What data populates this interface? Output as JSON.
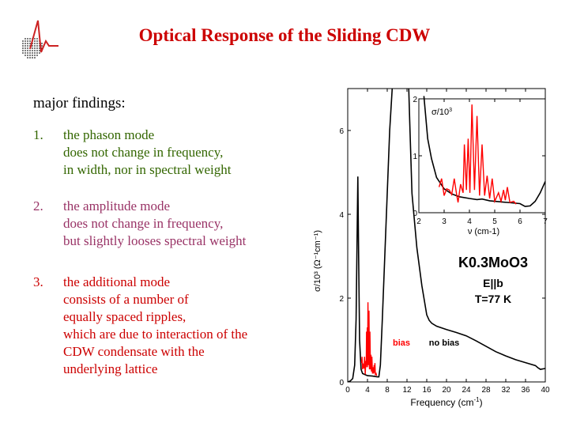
{
  "slide": {
    "title": "Optical Response of the Sliding CDW",
    "heading": "major findings:",
    "findings": [
      {
        "number": "1.",
        "color": "#336600",
        "lines": [
          "the phason mode",
          "does not change in frequency,",
          "in width, nor in spectral weight"
        ]
      },
      {
        "number": "2.",
        "color": "#993366",
        "lines": [
          "the amplitude mode",
          "does not change in frequency,",
          "but slightly looses spectral weight"
        ]
      },
      {
        "number": "3.",
        "color": "#cc0000",
        "lines": [
          "the additional mode",
          "consists of a number of",
          "equally spaced ripples,",
          "which are due to interaction of the",
          "CDW condensate with the",
          "underlying lattice"
        ]
      }
    ]
  },
  "chart_data": [
    {
      "type": "line",
      "xlabel": "Frequency (cm-1)",
      "ylabel": "σ/10³ (Ω⁻¹cm⁻¹)",
      "xlim": [
        0,
        40
      ],
      "ylim": [
        0,
        7
      ],
      "xticks": [
        "0",
        "4",
        "8",
        "12",
        "16",
        "20",
        "24",
        "28",
        "32",
        "36",
        "40"
      ],
      "yticks": [
        "0",
        "2",
        "4",
        "6"
      ],
      "annotations": {
        "compound": "K0.3MoO3",
        "polarization": "E||b",
        "temperature": "T=77 K",
        "bias_label": "bias",
        "nobias_label": "no bias"
      },
      "series": [
        {
          "name": "no bias",
          "color": "#000000",
          "x": [
            0,
            0.5,
            1,
            1.4,
            1.7,
            1.9,
            2.05,
            2.2,
            2.4,
            2.7,
            3,
            4,
            5,
            6,
            6.3,
            6.6,
            7,
            7.5,
            8,
            8.5,
            9,
            9.3,
            12.3,
            12.6,
            13,
            14,
            15,
            16,
            16.5,
            17,
            18,
            20,
            22,
            24,
            26,
            28,
            30,
            32,
            34,
            36,
            38,
            38.5,
            39,
            40
          ],
          "y": [
            0,
            0.02,
            0.08,
            0.4,
            1.5,
            3.5,
            4.9,
            3,
            1,
            0.3,
            0.2,
            0.15,
            0.14,
            0.12,
            0.12,
            0.4,
            1.5,
            3,
            4.5,
            6,
            7,
            7.2,
            7.2,
            6,
            4.5,
            3.2,
            2.3,
            1.6,
            1.47,
            1.4,
            1.33,
            1.25,
            1.18,
            1.1,
            0.98,
            0.85,
            0.72,
            0.62,
            0.53,
            0.46,
            0.39,
            0.34,
            0.3,
            0.32
          ]
        },
        {
          "name": "bias",
          "color": "#ff0000",
          "x": [
            2.8,
            2.9,
            3.0,
            3.1,
            3.2,
            3.3,
            3.4,
            3.5,
            3.55,
            3.65,
            3.75,
            3.8,
            3.88,
            3.95,
            4.02,
            4.1,
            4.2,
            4.3,
            4.4,
            4.5,
            4.6,
            4.7,
            4.8,
            4.9,
            5.0,
            5.15,
            5.25,
            5.35,
            5.42,
            5.5,
            5.6,
            5.75,
            5.85
          ],
          "y": [
            0.45,
            0.6,
            0.3,
            0.42,
            0.4,
            0.32,
            0.6,
            0.3,
            0.18,
            0.5,
            0.35,
            1.2,
            0.4,
            1.3,
            0.35,
            1.9,
            0.4,
            1.7,
            0.3,
            1.2,
            0.3,
            0.65,
            0.25,
            0.6,
            0.2,
            0.35,
            0.2,
            0.4,
            0.22,
            0.45,
            0.18,
            0.2,
            0.15
          ]
        }
      ]
    },
    {
      "type": "line",
      "title": "σ/10³",
      "xlabel": "ν (cm-1)",
      "xlim": [
        2,
        7
      ],
      "ylim": [
        0,
        2
      ],
      "xticks": [
        "2",
        "3",
        "4",
        "5",
        "6",
        "7"
      ],
      "yticks": [
        "0",
        "1",
        "2"
      ],
      "series": [
        {
          "name": "no bias",
          "color": "#000000",
          "x": [
            2.2,
            2.35,
            2.5,
            2.7,
            3,
            3.3,
            3.6,
            4,
            4.3,
            4.5,
            4.8,
            5,
            5.5,
            6,
            6.2,
            6.4,
            6.6,
            6.8,
            7
          ],
          "y": [
            2.05,
            1.3,
            0.95,
            0.62,
            0.42,
            0.33,
            0.28,
            0.25,
            0.23,
            0.24,
            0.21,
            0.2,
            0.18,
            0.16,
            0.11,
            0.12,
            0.2,
            0.35,
            0.55
          ]
        },
        {
          "name": "bias",
          "color": "#ff0000",
          "x": [
            2.8,
            2.9,
            3.0,
            3.1,
            3.2,
            3.3,
            3.4,
            3.5,
            3.55,
            3.65,
            3.75,
            3.8,
            3.88,
            3.95,
            4.02,
            4.1,
            4.2,
            4.3,
            4.4,
            4.5,
            4.6,
            4.7,
            4.8,
            4.9,
            5.0,
            5.15,
            5.25,
            5.35,
            5.42,
            5.5,
            5.6,
            5.75,
            5.85
          ],
          "y": [
            0.45,
            0.6,
            0.3,
            0.42,
            0.4,
            0.32,
            0.6,
            0.3,
            0.18,
            0.5,
            0.35,
            1.2,
            0.4,
            1.3,
            0.35,
            1.9,
            0.4,
            1.7,
            0.3,
            1.2,
            0.3,
            0.65,
            0.25,
            0.6,
            0.2,
            0.35,
            0.2,
            0.4,
            0.22,
            0.45,
            0.18,
            0.2,
            0.15
          ]
        }
      ]
    }
  ]
}
